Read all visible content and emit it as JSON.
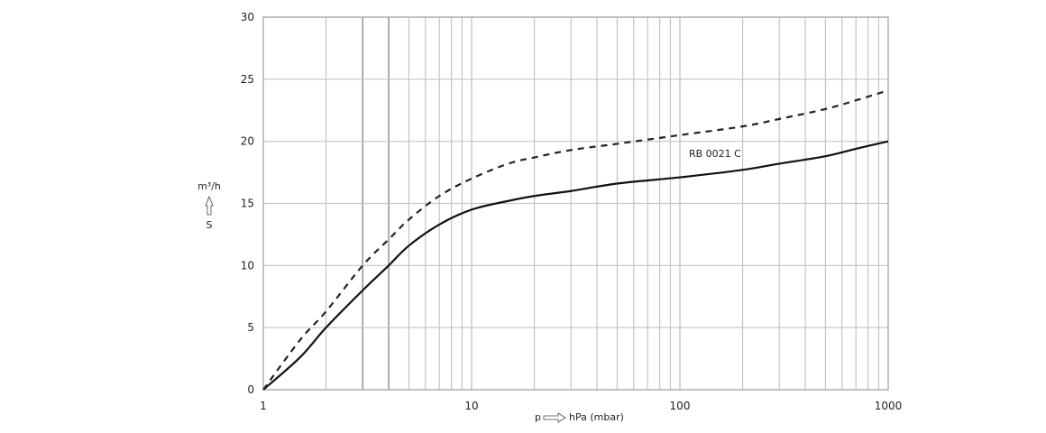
{
  "chart_data": {
    "type": "line",
    "title": "",
    "xlabel": "p ⇨ hPa (mbar)",
    "xlabel_prefix": "p",
    "xlabel_unit": "hPa (mbar)",
    "ylabel_unit": "m³/h",
    "ylabel_symbol": "S",
    "x_scale": "log",
    "xlim": [
      1,
      1000
    ],
    "ylim": [
      0,
      30
    ],
    "x_ticks": [
      1,
      10,
      100,
      1000
    ],
    "x_tick_labels": [
      "1",
      "10",
      "100",
      "1000"
    ],
    "y_ticks": [
      0,
      5,
      10,
      15,
      20,
      25,
      30
    ],
    "y_tick_labels": [
      "0",
      "5",
      "10",
      "15",
      "20",
      "25",
      "30"
    ],
    "grid": true,
    "annotation": "RB 0021 C",
    "series": [
      {
        "style": "solid",
        "color": "#111111",
        "x": [
          1,
          1.5,
          2,
          3,
          4,
          5,
          7,
          10,
          15,
          20,
          30,
          50,
          100,
          200,
          300,
          500,
          700,
          1000
        ],
        "y": [
          0,
          2.6,
          5.0,
          8.0,
          10.0,
          11.6,
          13.3,
          14.5,
          15.2,
          15.6,
          16.0,
          16.6,
          17.1,
          17.7,
          18.2,
          18.8,
          19.4,
          20.0
        ]
      },
      {
        "style": "dashed",
        "color": "#222222",
        "x": [
          1,
          1.5,
          2,
          3,
          4,
          5,
          7,
          10,
          15,
          20,
          30,
          50,
          100,
          200,
          300,
          500,
          700,
          1000
        ],
        "y": [
          0,
          4.0,
          6.3,
          10.0,
          12.1,
          13.7,
          15.6,
          17.0,
          18.2,
          18.7,
          19.3,
          19.8,
          20.5,
          21.2,
          21.8,
          22.6,
          23.3,
          24.1
        ]
      }
    ]
  }
}
